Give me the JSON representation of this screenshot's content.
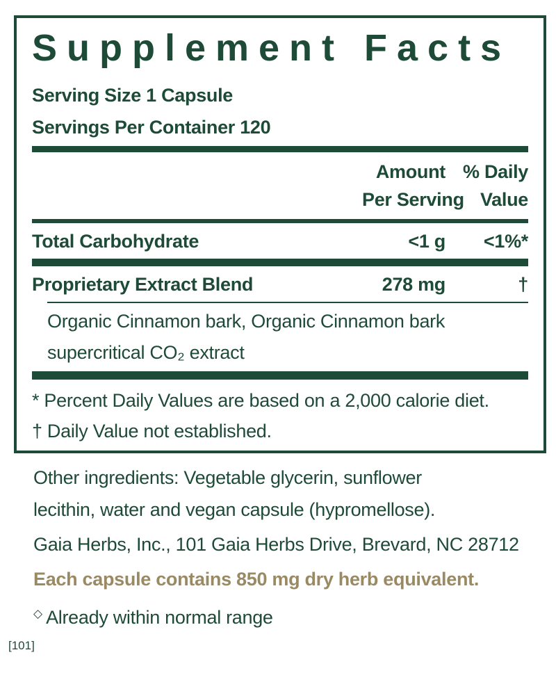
{
  "colors": {
    "green": "#1e4a38",
    "gold": "#9a8a64"
  },
  "panel": {
    "title": "Supplement Facts",
    "serving_size": "Serving Size 1 Capsule",
    "servings_per_container": "Servings Per Container 120",
    "header": {
      "amount_line1": "Amount",
      "amount_line2": "Per Serving",
      "dv_line1": "% Daily",
      "dv_line2": "Value"
    },
    "rows": [
      {
        "name": "Total Carbohydrate",
        "amount": "<1 g",
        "dv": "<1%*"
      },
      {
        "name": "Proprietary Extract Blend",
        "amount": "278 mg",
        "dv": "†"
      }
    ],
    "sub_ingredients_lines": [
      "Organic Cinnamon bark, Organic Cinnamon bark",
      "supercritical CO₂ extract"
    ],
    "footnotes": [
      "* Percent Daily Values are based on a 2,000 calorie diet.",
      "† Daily Value not established."
    ]
  },
  "below": {
    "other_ingredients_lines": [
      "Other ingredients: Vegetable glycerin, sunflower",
      "lecithin, water and vegan capsule (hypromellose)."
    ],
    "manufacturer": "Gaia Herbs, Inc., 101 Gaia Herbs Drive, Brevard, NC 28712",
    "dry_herb_equivalent": "Each capsule contains 850 mg dry herb equivalent.",
    "normal_range_symbol": "◇",
    "normal_range_text": "Already within normal range",
    "reference_tag": "[101]"
  }
}
